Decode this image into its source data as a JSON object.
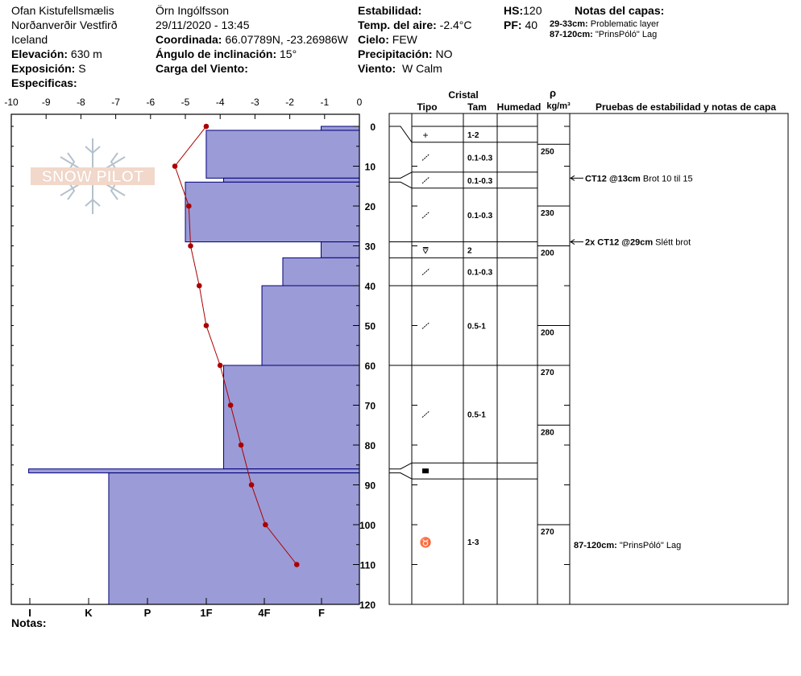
{
  "header": {
    "location": "Ofan Kistufellsmælis",
    "region": "Norðanverðir Vestfirð",
    "country": "Iceland",
    "elevation_label": "Elevación:",
    "elevation_value": "630 m",
    "aspect_label": "Exposición:",
    "aspect_value": "S",
    "specifics_label": "Especificas:",
    "observer": "Örn Ingólfsson",
    "datetime": "29/11/2020 - 13:45",
    "coord_label": "Coordinada:",
    "coord_value": "66.07789N, -23.26986W",
    "slope_label": "Ángulo de inclinación:",
    "slope_value": "15°",
    "wind_load_label": "Carga del Viento:",
    "stability_label": "Estabilidad:",
    "air_temp_label": "Temp. del aire:",
    "air_temp_value": "-2.4°C",
    "sky_label": "Cielo:",
    "sky_value": "FEW",
    "precip_label": "Precipitación:",
    "precip_value": "NO",
    "wind_label": "Viento:",
    "wind_value": "W Calm",
    "hs_label": "HS:",
    "hs_value": "120",
    "pf_label": "PF:",
    "pf_value": "40",
    "layer_notes_label": "Notas del capas:",
    "layer_notes": [
      {
        "range": "29-33cm:",
        "text": "Problematic layer"
      },
      {
        "range": "87-120cm:",
        "text": "\"PrinsPóló\" Lag"
      }
    ]
  },
  "footer": {
    "notes_label": "Notas:"
  },
  "watermark": {
    "text": "SNOW PILOT"
  },
  "colors": {
    "hardness_fill": "#9b9bd7",
    "hardness_stroke": "#00007a",
    "temp_line": "#aa0000"
  },
  "columns": {
    "crystal_header": "Cristal",
    "type_header": "Tipo",
    "size_header": "Tam",
    "moisture_header": "Humedad",
    "density_symbol": "ρ",
    "density_unit": "kg/m³",
    "tests_header": "Pruebas de estabilidad y notas de capa"
  },
  "chart_data": {
    "type": "snow_profile",
    "temperature_axis": {
      "ticks": [
        "-10",
        "-9",
        "-8",
        "-7",
        "-6",
        "-5",
        "-4",
        "-3",
        "-2",
        "-1",
        "0"
      ],
      "range": [
        -10,
        0
      ]
    },
    "depth_axis": {
      "ticks": [
        "0",
        "10",
        "20",
        "30",
        "40",
        "50",
        "60",
        "70",
        "80",
        "90",
        "100",
        "110",
        "120"
      ],
      "range": [
        0,
        120
      ]
    },
    "hardness_axis": {
      "ticks": [
        "I",
        "K",
        "P",
        "1F",
        "4F",
        "F"
      ]
    },
    "hardness_profile": [
      {
        "top": 0,
        "bottom": 1,
        "temp_scale_width": 1.1
      },
      {
        "top": 1,
        "bottom": 13,
        "temp_scale_width": 4.4
      },
      {
        "top": 13,
        "bottom": 14,
        "temp_scale_width": 3.9
      },
      {
        "top": 14,
        "bottom": 29,
        "temp_scale_width": 5.0
      },
      {
        "top": 29,
        "bottom": 33,
        "temp_scale_width": 1.1
      },
      {
        "top": 33,
        "bottom": 40,
        "temp_scale_width": 2.2
      },
      {
        "top": 40,
        "bottom": 60,
        "temp_scale_width": 2.8
      },
      {
        "top": 60,
        "bottom": 86,
        "temp_scale_width": 3.9
      },
      {
        "top": 86,
        "bottom": 87,
        "temp_scale_width": 9.5
      },
      {
        "top": 87,
        "bottom": 120,
        "temp_scale_width": 7.2
      }
    ],
    "temperature_profile": [
      {
        "depth": 0,
        "temp": -4.4
      },
      {
        "depth": 10,
        "temp": -5.3
      },
      {
        "depth": 20,
        "temp": -4.9
      },
      {
        "depth": 30,
        "temp": -4.85
      },
      {
        "depth": 40,
        "temp": -4.6
      },
      {
        "depth": 50,
        "temp": -4.4
      },
      {
        "depth": 60,
        "temp": -4.0
      },
      {
        "depth": 70,
        "temp": -3.7
      },
      {
        "depth": 80,
        "temp": -3.4
      },
      {
        "depth": 90,
        "temp": -3.1
      },
      {
        "depth": 100,
        "temp": -2.7
      },
      {
        "depth": 110,
        "temp": -1.8
      }
    ],
    "layers": [
      {
        "top": 0,
        "bottom": 4,
        "symbol": "+",
        "size": "1-2"
      },
      {
        "top": 4,
        "bottom": 11.5,
        "symbol": "⁄",
        "size": "0.1-0.3"
      },
      {
        "top": 11.5,
        "bottom": 15.5,
        "symbol": "⁄",
        "size": "0.1-0.3"
      },
      {
        "top": 15.5,
        "bottom": 29,
        "symbol": "⁄",
        "size": "0.1-0.3"
      },
      {
        "top": 29,
        "bottom": 33,
        "symbol": "⩢",
        "size": "2"
      },
      {
        "top": 33,
        "bottom": 40,
        "symbol": "⁄",
        "size": "0.1-0.3"
      },
      {
        "top": 40,
        "bottom": 60,
        "symbol": "⁄",
        "size": "0.5-1"
      },
      {
        "top": 60,
        "bottom": 84.5,
        "symbol": "⁄",
        "size": "0.5-1"
      },
      {
        "top": 84.5,
        "bottom": 88.5,
        "symbol": "▬",
        "size": ""
      },
      {
        "top": 88.5,
        "bottom": 120,
        "symbol": "♉",
        "size": "1-3"
      }
    ],
    "densities": [
      {
        "top": 4.5,
        "bottom": 20,
        "value": "250"
      },
      {
        "top": 20,
        "bottom": 30,
        "value": "230"
      },
      {
        "top": 30,
        "bottom": 50,
        "value": "200"
      },
      {
        "top": 50,
        "bottom": 60,
        "value": "200"
      },
      {
        "top": 60,
        "bottom": 75,
        "value": "270"
      },
      {
        "top": 75,
        "bottom": 100,
        "value": "280"
      },
      {
        "top": 100,
        "bottom": 120,
        "value": "270"
      }
    ],
    "tests": [
      {
        "depth": 13,
        "code": "CT12 @13cm",
        "note": "Brot 10 til 15"
      },
      {
        "depth": 29,
        "code": "2x CT12 @29cm",
        "note": "Slétt brot"
      }
    ],
    "layer_notes": [
      {
        "depth": 105,
        "range": "87-120cm:",
        "text": "\"PrinsPóló\" Lag"
      }
    ]
  }
}
